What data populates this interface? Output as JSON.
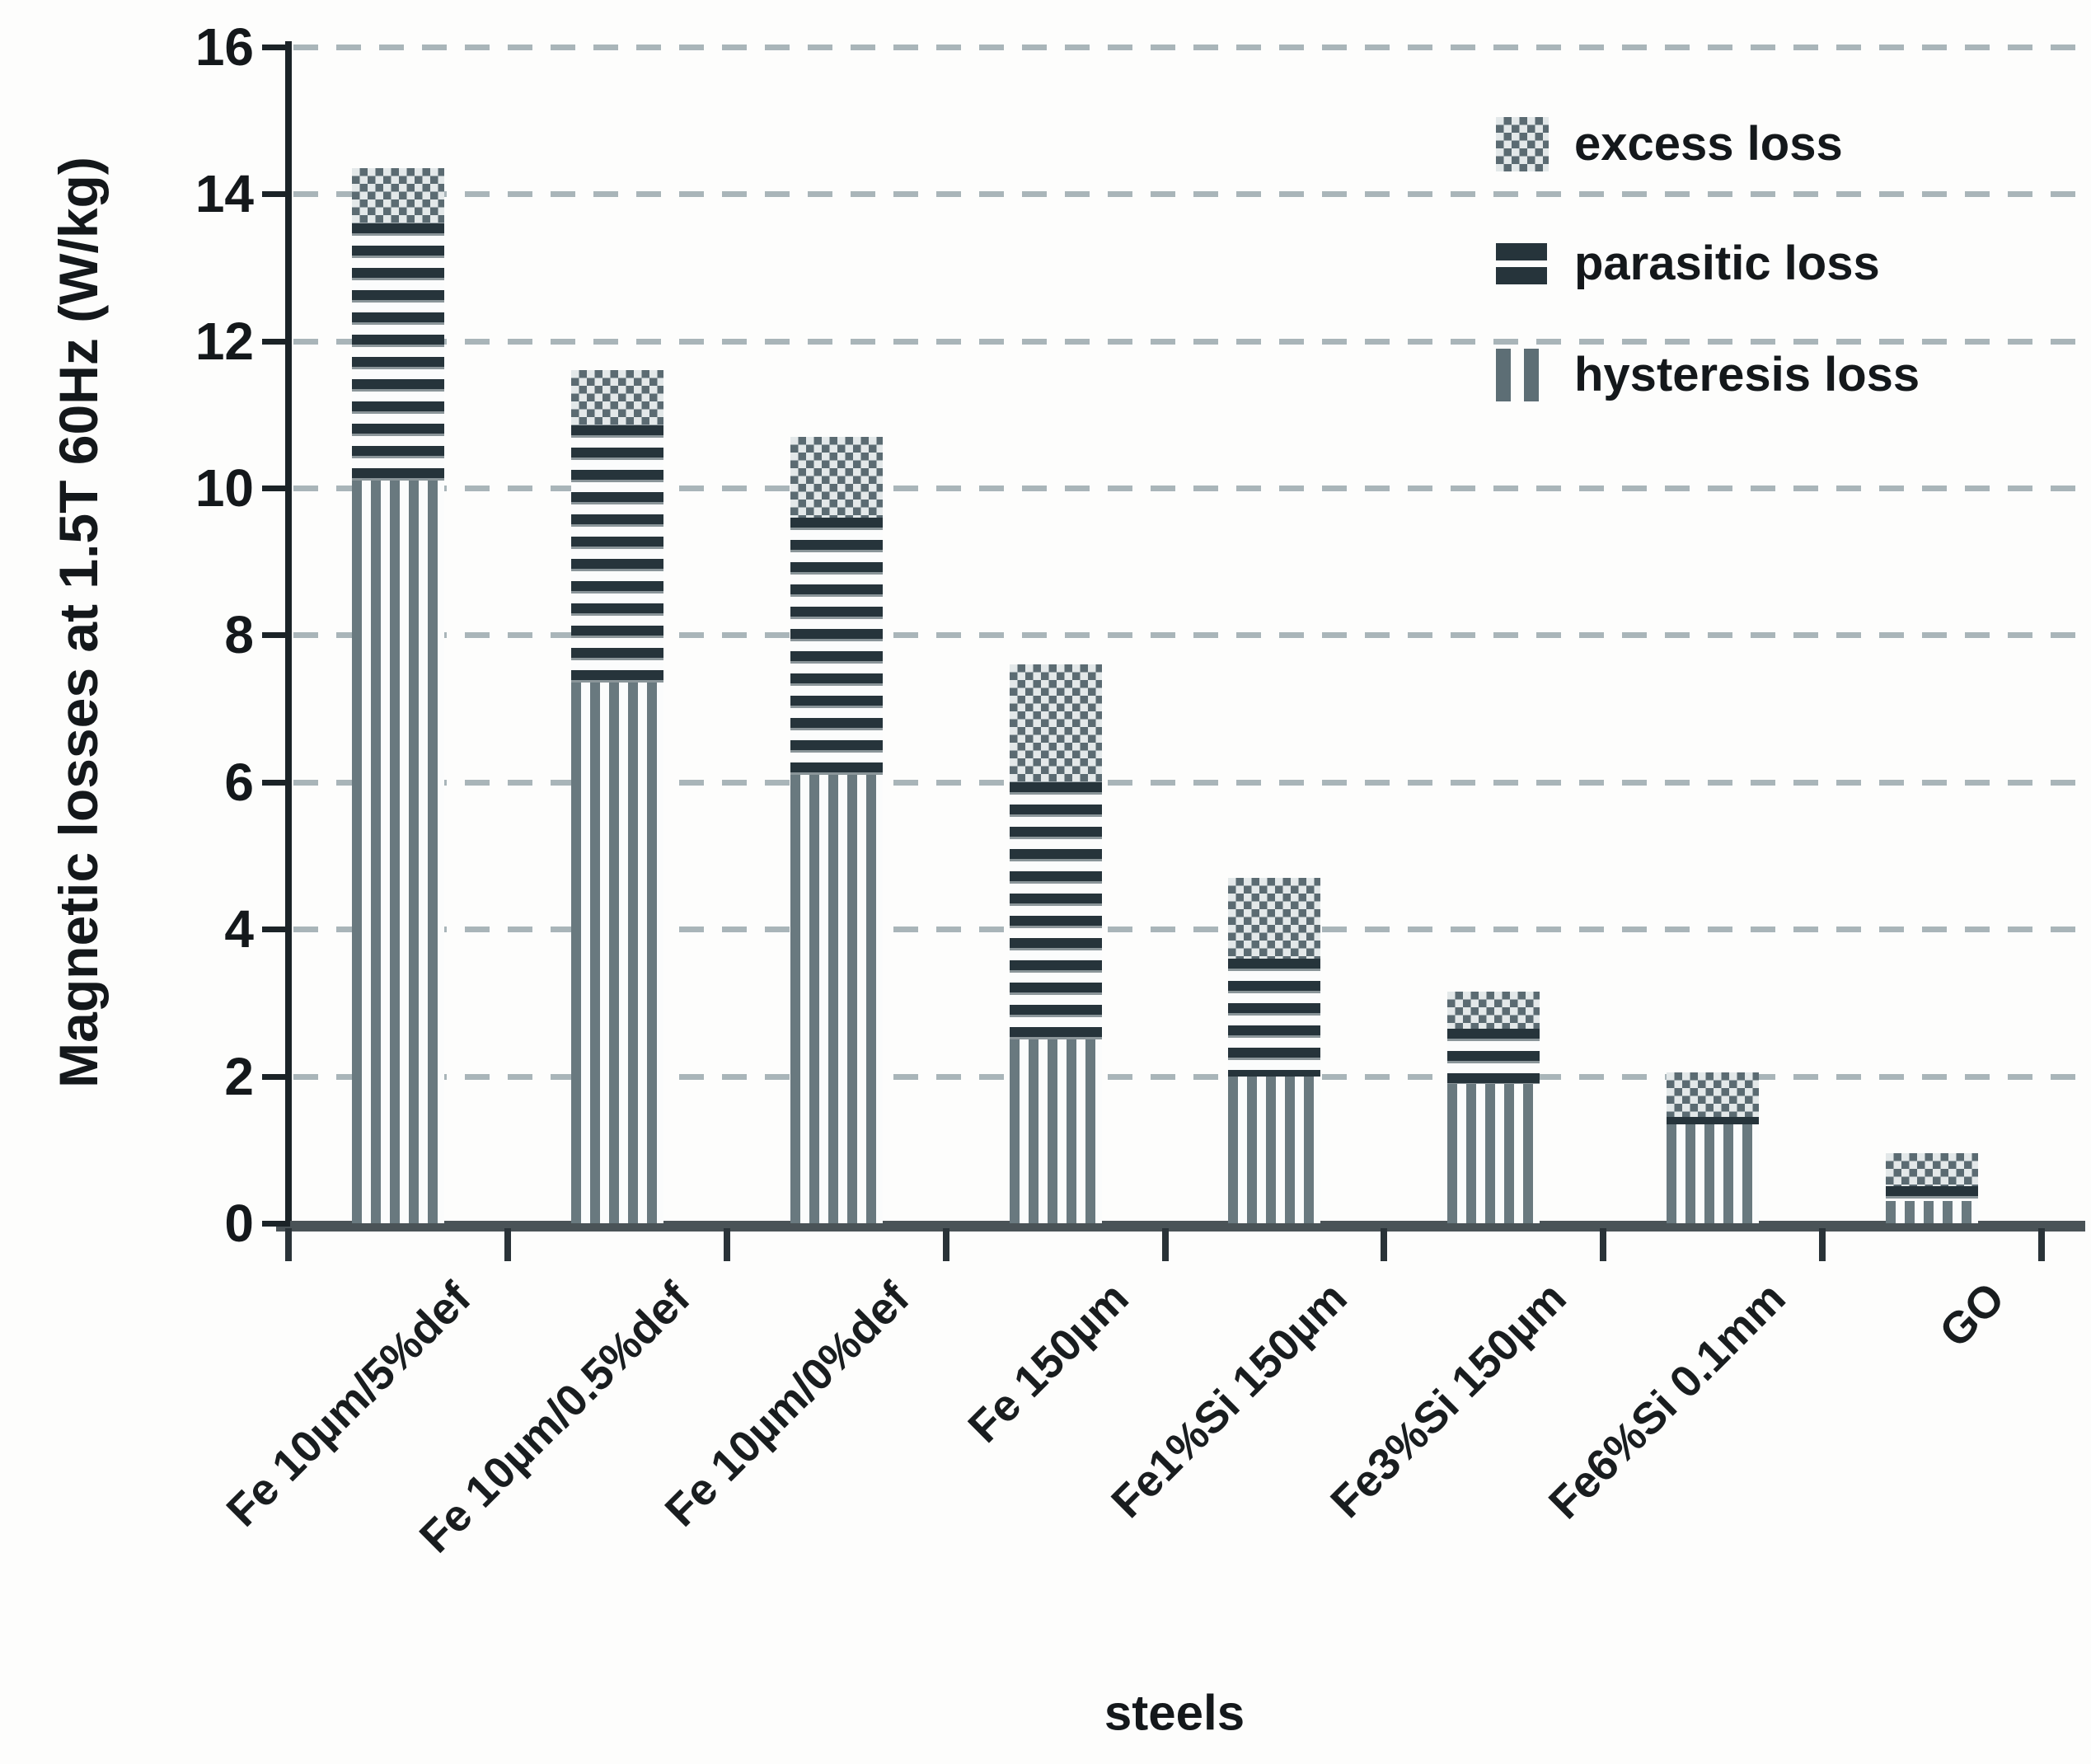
{
  "chart_data": {
    "type": "bar",
    "stacked": true,
    "title": "",
    "xlabel": "steels",
    "ylabel": "Magnetic losses at 1.5T 60Hz (W/kg)",
    "ylim": [
      0,
      16
    ],
    "yticks": [
      0,
      2,
      4,
      6,
      8,
      10,
      12,
      14,
      16
    ],
    "grid": "horizontal dashed gridlines at every y tick, drawn behind bars",
    "legend_position": "top-right inside plot",
    "categories": [
      "Fe 10µm/5%def",
      "Fe 10µm/0.5%def",
      "Fe 10µm/0%def",
      "Fe 150µm",
      "Fe1%Si 150µm",
      "Fe3%Si 150µm",
      "Fe6%Si 0.1mm",
      "GO"
    ],
    "series": [
      {
        "name": "hysteresis loss",
        "pattern": "hysteresis",
        "values": [
          10.1,
          7.35,
          6.1,
          2.5,
          2.0,
          1.9,
          1.35,
          0.3
        ]
      },
      {
        "name": "parasitic loss",
        "pattern": "parasitic",
        "values": [
          3.5,
          3.5,
          3.5,
          3.5,
          1.6,
          0.75,
          0.1,
          0.2
        ]
      },
      {
        "name": "excess loss",
        "pattern": "excess",
        "values": [
          0.75,
          0.75,
          1.1,
          1.6,
          1.1,
          0.5,
          0.6,
          0.45
        ]
      }
    ],
    "stack_totals": [
      14.35,
      11.6,
      10.7,
      7.6,
      4.7,
      3.15,
      2.05,
      0.95
    ]
  },
  "legend": {
    "items": [
      {
        "label": "excess loss",
        "pattern": "excess"
      },
      {
        "label": "parasitic loss",
        "pattern": "parasitic"
      },
      {
        "label": "hysteresis loss",
        "pattern": "hysteresis"
      }
    ]
  },
  "colors": {
    "dark_stripe": "#26343b",
    "mid_stripe": "#69797f",
    "checker_dark": "#5b6b72",
    "checker_light": "#e3e8e9",
    "gridline": "#a9b5b9",
    "axis_spine": "#1b2327",
    "baseline": "#4a5357",
    "text": "#14181b",
    "background": "#fdfdfc"
  }
}
